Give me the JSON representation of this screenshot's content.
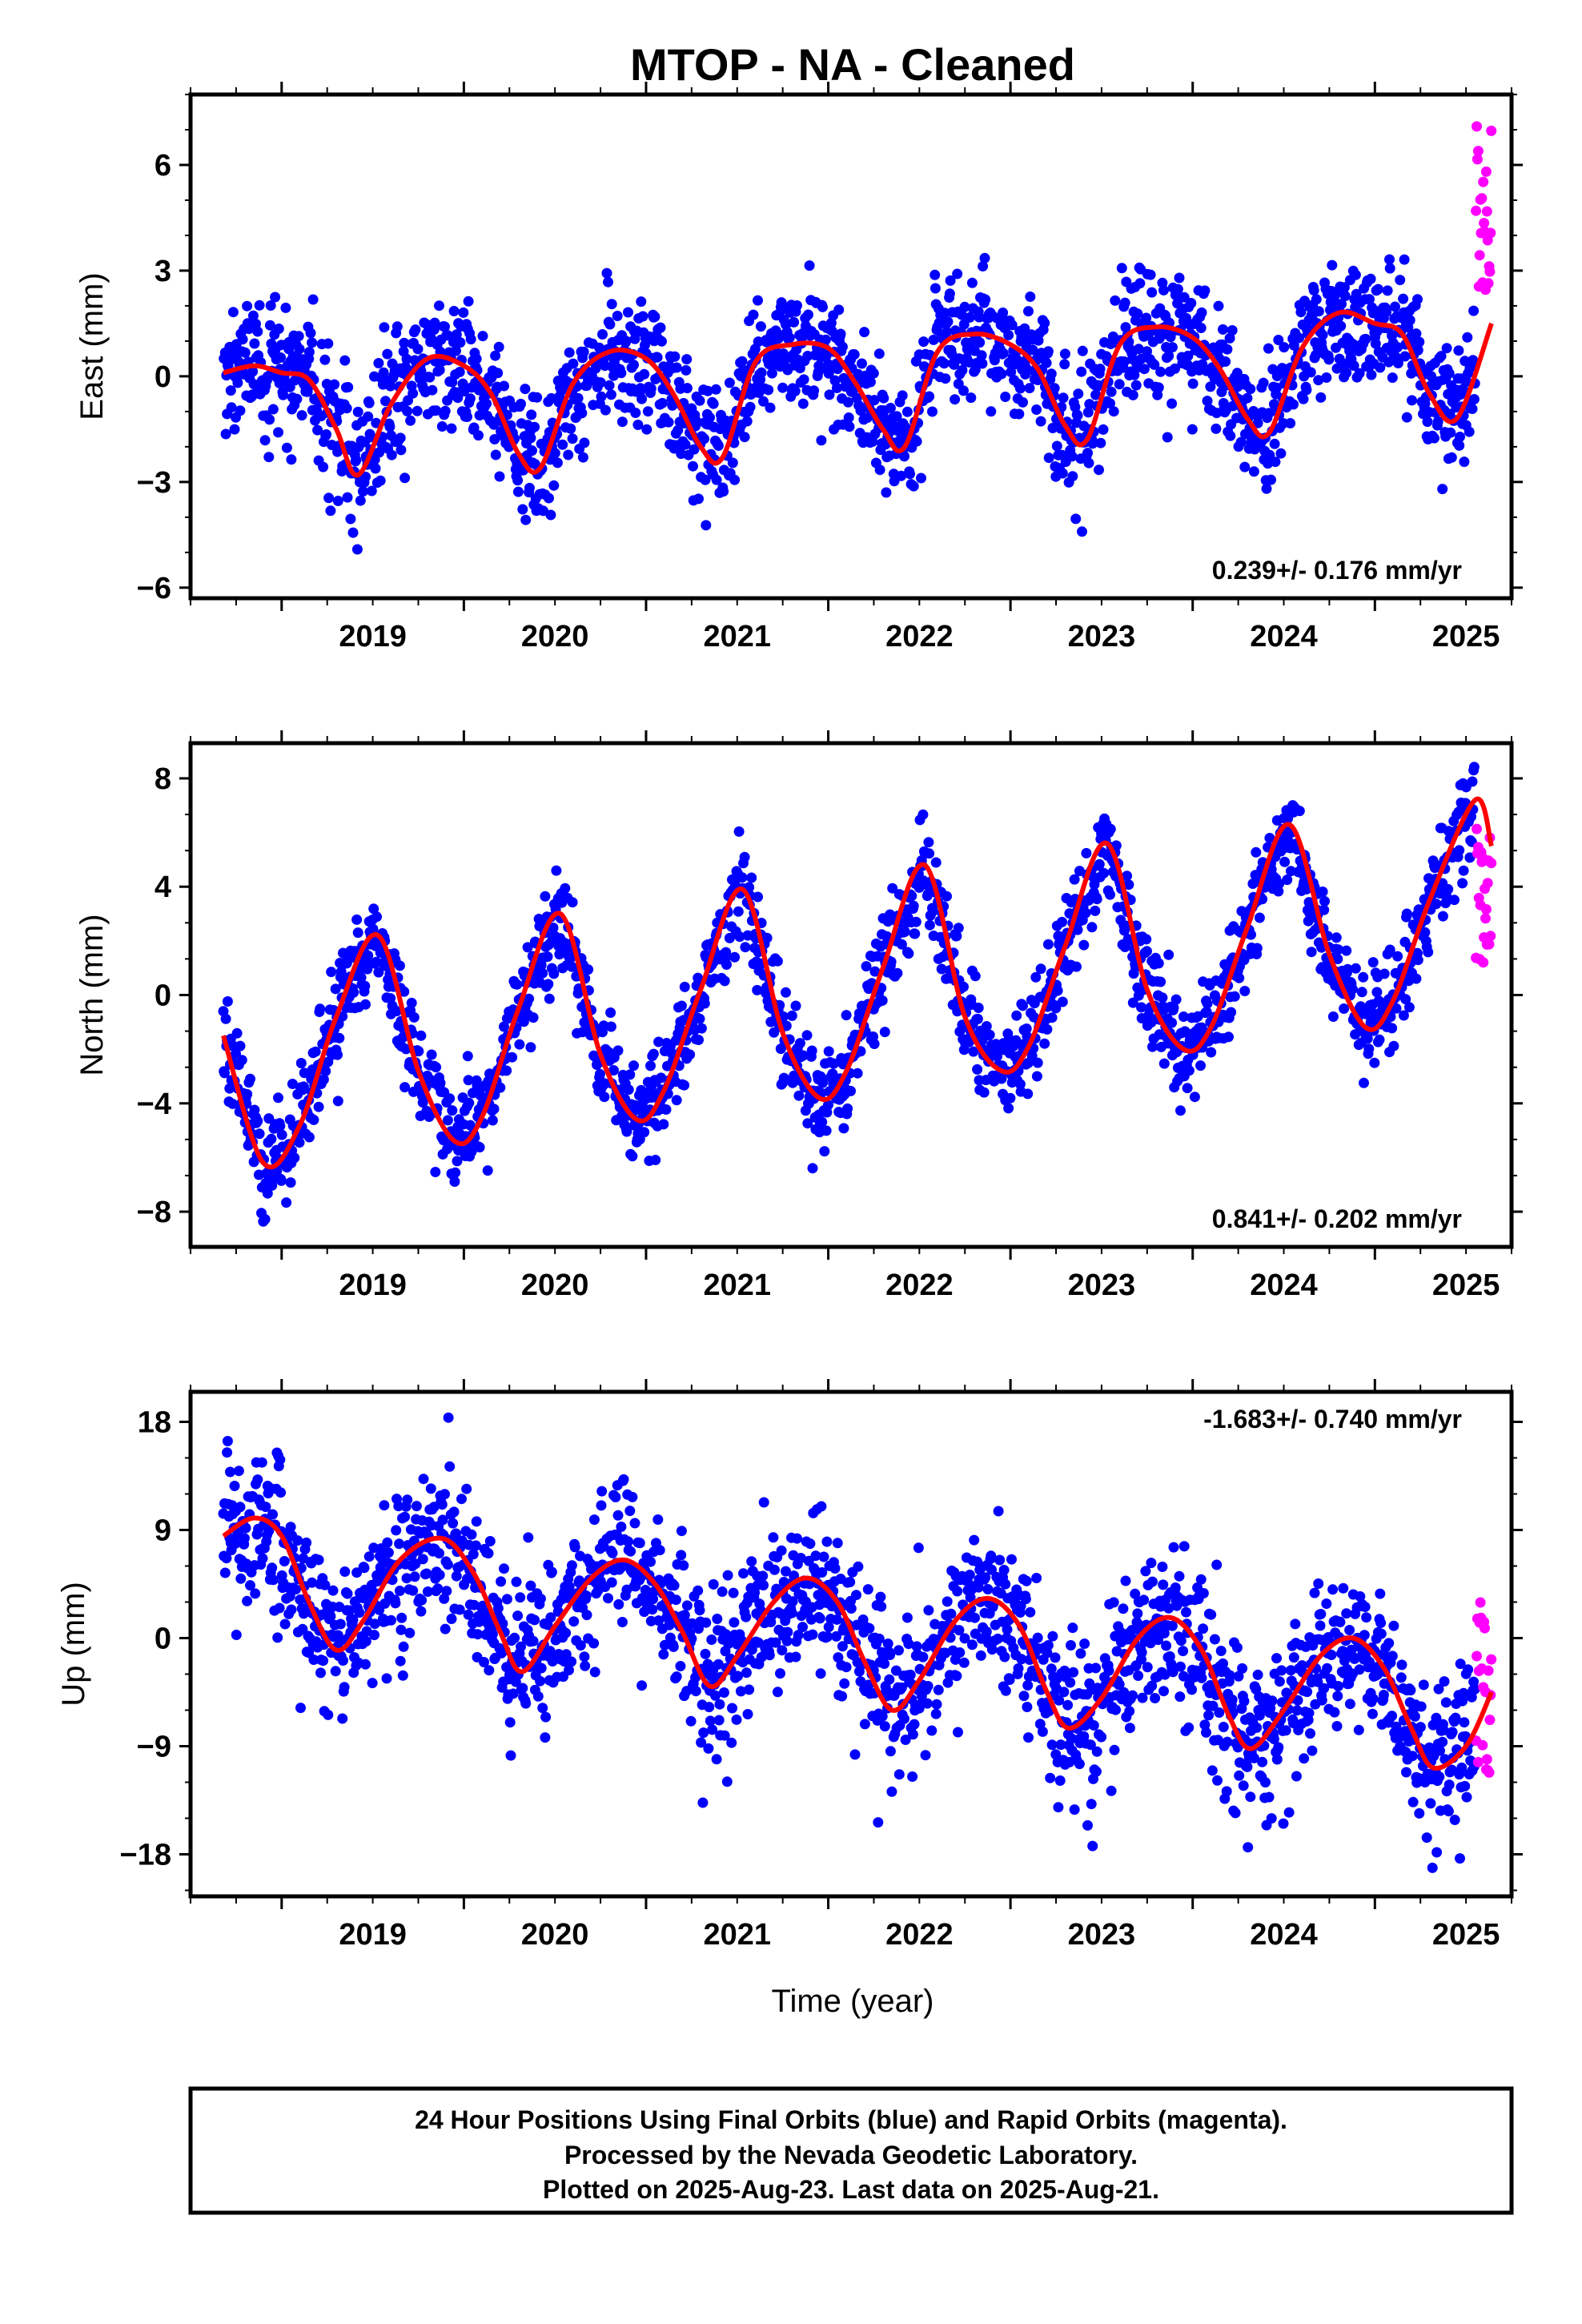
{
  "title": "MTOP  - NA - Cleaned",
  "xlabel": "Time (year)",
  "colors": {
    "final": "#0000ff",
    "rapid": "#ff00ff",
    "fit": "#ff0000",
    "frame": "#000000"
  },
  "footer": {
    "line1": "24 Hour Positions Using Final Orbits (blue) and Rapid Orbits (magenta).",
    "line2": "Processed by the Nevada Geodetic Laboratory.",
    "line3": "Plotted on 2025-Aug-23. Last data on 2025-Aug-21."
  },
  "chart_data": [
    {
      "type": "scatter",
      "component": "East",
      "ylabel": "East (mm)",
      "rate": "0.239+/- 0.176 mm/yr",
      "xlim": [
        2018.5,
        2025.75
      ],
      "ylim": [
        -6.3,
        8.0
      ],
      "yticks": [
        -6,
        -3,
        0,
        3,
        6
      ],
      "xticks": [
        2019,
        2020,
        2021,
        2022,
        2023,
        2024,
        2025
      ],
      "start": 2018.68,
      "end_final": 2025.55,
      "end": 2025.64,
      "trend_mm_per_yr": 0.239,
      "annual_amp": 1.5,
      "annual_phase_peak": 0.85,
      "semiannual_amp": 0.6,
      "noise": 0.9,
      "offset": -0.4,
      "rapid_mean": 5.0,
      "rapid_spread": 2.8,
      "fit": {
        "x": [
          2018.68,
          2018.85,
          2019.0,
          2019.15,
          2019.3,
          2019.42,
          2019.6,
          2019.8,
          2020.0,
          2020.15,
          2020.3,
          2020.42,
          2020.6,
          2020.8,
          2021.0,
          2021.15,
          2021.3,
          2021.42,
          2021.6,
          2021.8,
          2022.0,
          2022.15,
          2022.3,
          2022.42,
          2022.6,
          2022.8,
          2023.0,
          2023.15,
          2023.3,
          2023.42,
          2023.6,
          2023.8,
          2024.0,
          2024.15,
          2024.3,
          2024.42,
          2024.6,
          2024.8,
          2025.0,
          2025.15,
          2025.3,
          2025.45,
          2025.64
        ],
        "y": [
          0.1,
          0.3,
          0.1,
          -0.1,
          -1.5,
          -2.8,
          -0.8,
          0.5,
          0.3,
          -0.5,
          -2.2,
          -2.6,
          -0.2,
          0.7,
          0.5,
          -0.5,
          -2.0,
          -2.3,
          0.4,
          0.9,
          0.8,
          -0.2,
          -1.5,
          -2.0,
          0.7,
          1.2,
          0.9,
          0.2,
          -1.4,
          -1.8,
          0.9,
          1.4,
          1.1,
          0.2,
          -1.2,
          -1.6,
          0.8,
          1.8,
          1.5,
          1.2,
          -0.5,
          -1.2,
          1.5
        ]
      }
    },
    {
      "type": "scatter",
      "component": "North",
      "ylabel": "North (mm)",
      "rate": "0.841+/- 0.202 mm/yr",
      "xlim": [
        2018.5,
        2025.75
      ],
      "ylim": [
        -9.3,
        9.3
      ],
      "yticks": [
        -8,
        -4,
        0,
        4,
        8
      ],
      "xticks": [
        2019,
        2020,
        2021,
        2022,
        2023,
        2024,
        2025
      ],
      "start": 2018.68,
      "end_final": 2025.55,
      "end": 2025.64,
      "trend_mm_per_yr": 0.841,
      "annual_amp": 4.2,
      "annual_phase_peak": 0.53,
      "semiannual_amp": 0.2,
      "noise": 0.9,
      "offset": -2.2,
      "rapid_mean": 3.8,
      "rapid_spread": 2.6,
      "fit": {
        "x": [
          2018.68,
          2018.9,
          2019.1,
          2019.3,
          2019.53,
          2019.75,
          2019.95,
          2020.1,
          2020.3,
          2020.53,
          2020.75,
          2020.95,
          2021.1,
          2021.3,
          2021.53,
          2021.75,
          2021.95,
          2022.1,
          2022.3,
          2022.53,
          2022.75,
          2022.95,
          2023.1,
          2023.3,
          2023.53,
          2023.75,
          2023.95,
          2024.1,
          2024.3,
          2024.53,
          2024.75,
          2024.95,
          2025.1,
          2025.3,
          2025.55,
          2025.64
        ],
        "y": [
          -1.5,
          -6.2,
          -4.8,
          -0.8,
          2.2,
          -2.8,
          -5.4,
          -4.5,
          -0.5,
          3.0,
          -2.2,
          -4.6,
          -3.5,
          0.2,
          3.9,
          -1.4,
          -3.8,
          -2.8,
          1.0,
          4.8,
          -0.8,
          -2.8,
          -1.9,
          1.8,
          5.6,
          0.2,
          -2.0,
          -1.2,
          2.5,
          6.3,
          1.5,
          -1.2,
          -0.2,
          3.5,
          7.2,
          5.5
        ]
      }
    },
    {
      "type": "scatter",
      "component": "Up",
      "ylabel": "Up (mm)",
      "rate": "-1.683+/- 0.740 mm/yr",
      "xlim": [
        2018.5,
        2025.75
      ],
      "ylim": [
        -21.5,
        20.5
      ],
      "yticks": [
        -18,
        -9,
        0,
        9,
        18
      ],
      "xticks": [
        2019,
        2020,
        2021,
        2022,
        2023,
        2024,
        2025
      ],
      "start": 2018.68,
      "end_final": 2025.55,
      "end": 2025.64,
      "trend_mm_per_yr": -1.683,
      "annual_amp": 5.5,
      "annual_phase_peak": 0.87,
      "semiannual_amp": 0.6,
      "noise": 3.3,
      "offset": 6.0,
      "rapid_mean": -5.0,
      "rapid_spread": 8.0,
      "fit": {
        "x": [
          2018.68,
          2018.85,
          2019.0,
          2019.15,
          2019.3,
          2019.45,
          2019.65,
          2019.88,
          2020.05,
          2020.2,
          2020.32,
          2020.5,
          2020.7,
          2020.88,
          2021.05,
          2021.2,
          2021.35,
          2021.5,
          2021.7,
          2021.88,
          2022.05,
          2022.2,
          2022.35,
          2022.5,
          2022.7,
          2022.88,
          2023.05,
          2023.2,
          2023.32,
          2023.5,
          2023.7,
          2023.88,
          2024.05,
          2024.2,
          2024.32,
          2024.5,
          2024.7,
          2024.88,
          2025.05,
          2025.2,
          2025.32,
          2025.5,
          2025.64
        ],
        "y": [
          8.5,
          10.0,
          8.5,
          3.0,
          -1.0,
          1.5,
          6.5,
          8.3,
          5.5,
          0.5,
          -2.8,
          1.0,
          5.0,
          6.5,
          4.5,
          0.5,
          -4.0,
          -1.5,
          3.0,
          5.0,
          3.0,
          -2.0,
          -6.0,
          -3.5,
          1.5,
          3.3,
          1.0,
          -4.5,
          -7.5,
          -5.0,
          0.0,
          1.7,
          -1.0,
          -6.5,
          -9.2,
          -6.0,
          -1.5,
          0.0,
          -2.5,
          -7.5,
          -10.8,
          -9.0,
          -4.5
        ]
      }
    }
  ]
}
